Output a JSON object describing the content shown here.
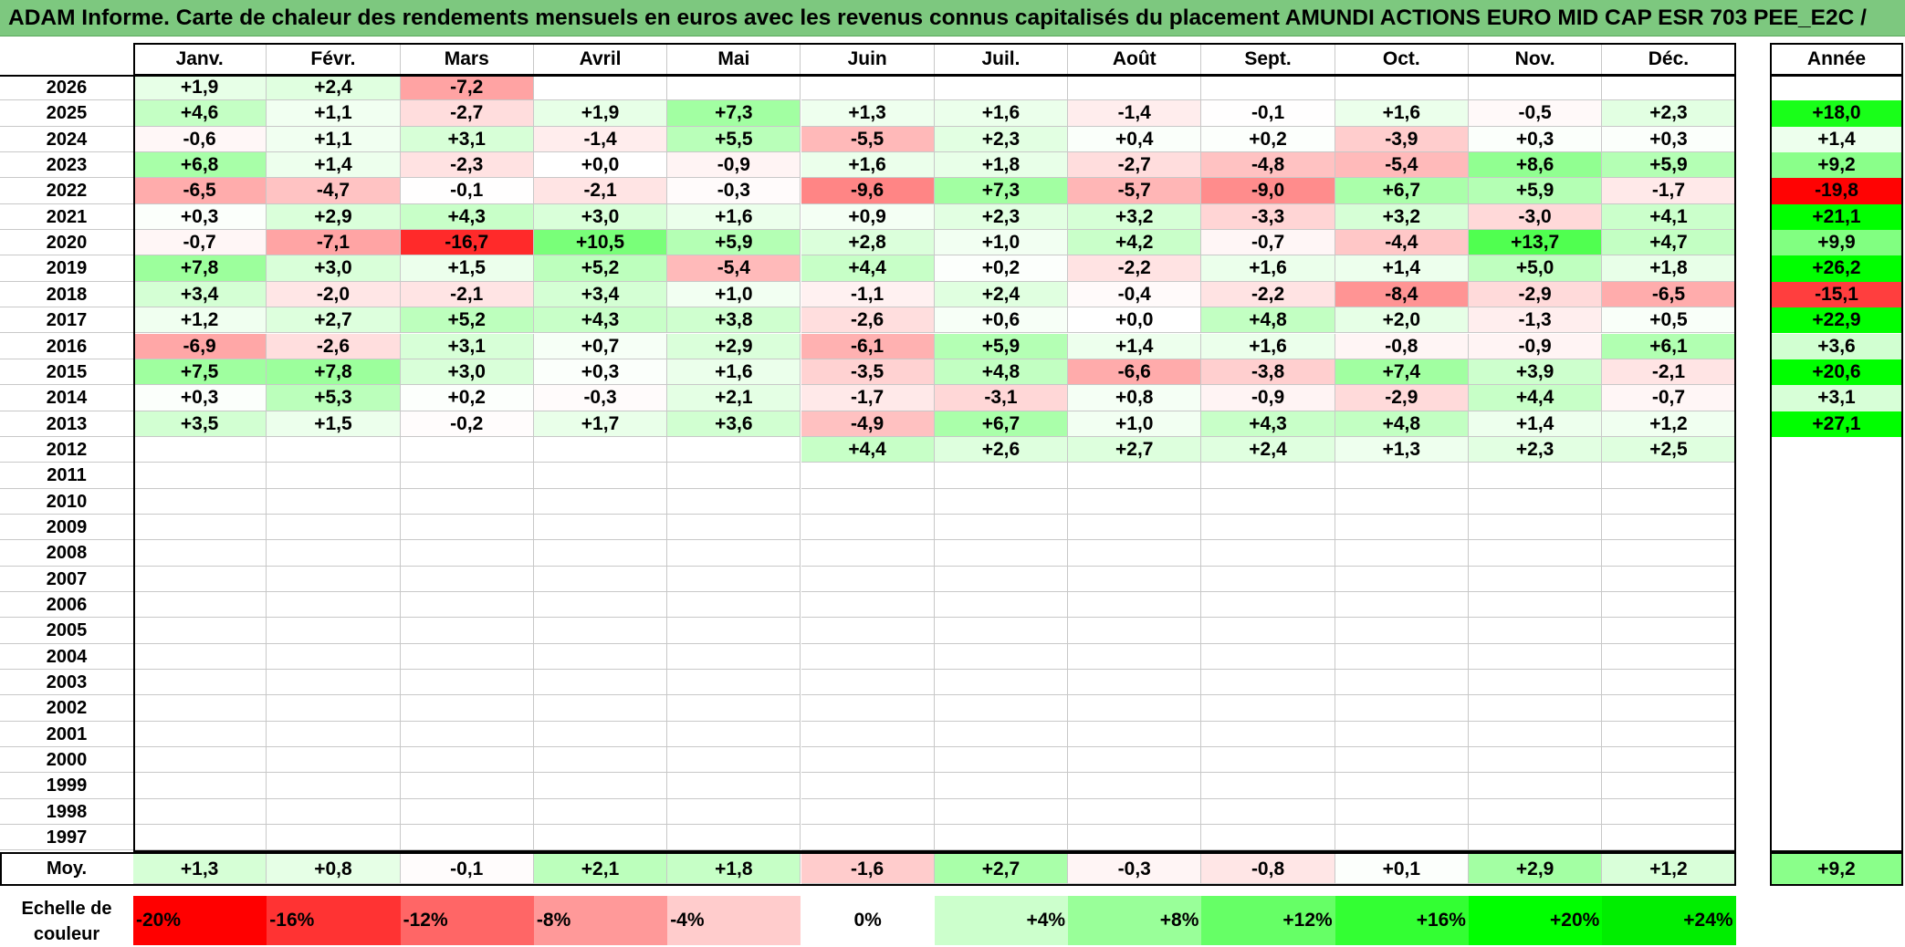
{
  "title": "ADAM Informe. Carte de chaleur des rendements mensuels en euros avec les revenus connus capitalisés du placement AMUNDI ACTIONS EURO MID CAP ESR 703 PEE_E2C /",
  "months": [
    "Janv.",
    "Févr.",
    "Mars",
    "Avril",
    "Mai",
    "Juin",
    "Juil.",
    "Août",
    "Sept.",
    "Oct.",
    "Nov.",
    "Déc."
  ],
  "annual_header": "Année",
  "average_label": "Moy.",
  "scale_label": "Echelle de couleur",
  "chart_data": {
    "type": "heatmap",
    "title": "ADAM Informe. Carte de chaleur des rendements mensuels en euros avec les revenus connus capitalisés du placement AMUNDI ACTIONS EURO MID CAP ESR 703 PEE_E2C /",
    "x_categories": [
      "Janv.",
      "Févr.",
      "Mars",
      "Avril",
      "Mai",
      "Juin",
      "Juil.",
      "Août",
      "Sept.",
      "Oct.",
      "Nov.",
      "Déc."
    ],
    "rows": [
      {
        "year": "2026",
        "values": [
          "+1,9",
          "+2,4",
          "-7,2",
          null,
          null,
          null,
          null,
          null,
          null,
          null,
          null,
          null
        ],
        "annual": null
      },
      {
        "year": "2025",
        "values": [
          "+4,6",
          "+1,1",
          "-2,7",
          "+1,9",
          "+7,3",
          "+1,3",
          "+1,6",
          "-1,4",
          "-0,1",
          "+1,6",
          "-0,5",
          "+2,3"
        ],
        "annual": "+18,0"
      },
      {
        "year": "2024",
        "values": [
          "-0,6",
          "+1,1",
          "+3,1",
          "-1,4",
          "+5,5",
          "-5,5",
          "+2,3",
          "+0,4",
          "+0,2",
          "-3,9",
          "+0,3",
          "+0,3"
        ],
        "annual": "+1,4"
      },
      {
        "year": "2023",
        "values": [
          "+6,8",
          "+1,4",
          "-2,3",
          "+0,0",
          "-0,9",
          "+1,6",
          "+1,8",
          "-2,7",
          "-4,8",
          "-5,4",
          "+8,6",
          "+5,9"
        ],
        "annual": "+9,2"
      },
      {
        "year": "2022",
        "values": [
          "-6,5",
          "-4,7",
          "-0,1",
          "-2,1",
          "-0,3",
          "-9,6",
          "+7,3",
          "-5,7",
          "-9,0",
          "+6,7",
          "+5,9",
          "-1,7"
        ],
        "annual": "-19,8"
      },
      {
        "year": "2021",
        "values": [
          "+0,3",
          "+2,9",
          "+4,3",
          "+3,0",
          "+1,6",
          "+0,9",
          "+2,3",
          "+3,2",
          "-3,3",
          "+3,2",
          "-3,0",
          "+4,1"
        ],
        "annual": "+21,1"
      },
      {
        "year": "2020",
        "values": [
          "-0,7",
          "-7,1",
          "-16,7",
          "+10,5",
          "+5,9",
          "+2,8",
          "+1,0",
          "+4,2",
          "-0,7",
          "-4,4",
          "+13,7",
          "+4,7"
        ],
        "annual": "+9,9"
      },
      {
        "year": "2019",
        "values": [
          "+7,8",
          "+3,0",
          "+1,5",
          "+5,2",
          "-5,4",
          "+4,4",
          "+0,2",
          "-2,2",
          "+1,6",
          "+1,4",
          "+5,0",
          "+1,8"
        ],
        "annual": "+26,2"
      },
      {
        "year": "2018",
        "values": [
          "+3,4",
          "-2,0",
          "-2,1",
          "+3,4",
          "+1,0",
          "-1,1",
          "+2,4",
          "-0,4",
          "-2,2",
          "-8,4",
          "-2,9",
          "-6,5"
        ],
        "annual": "-15,1"
      },
      {
        "year": "2017",
        "values": [
          "+1,2",
          "+2,7",
          "+5,2",
          "+4,3",
          "+3,8",
          "-2,6",
          "+0,6",
          "+0,0",
          "+4,8",
          "+2,0",
          "-1,3",
          "+0,5"
        ],
        "annual": "+22,9"
      },
      {
        "year": "2016",
        "values": [
          "-6,9",
          "-2,6",
          "+3,1",
          "+0,7",
          "+2,9",
          "-6,1",
          "+5,9",
          "+1,4",
          "+1,6",
          "-0,8",
          "-0,9",
          "+6,1"
        ],
        "annual": "+3,6"
      },
      {
        "year": "2015",
        "values": [
          "+7,5",
          "+7,8",
          "+3,0",
          "+0,3",
          "+1,6",
          "-3,5",
          "+4,8",
          "-6,6",
          "-3,8",
          "+7,4",
          "+3,9",
          "-2,1"
        ],
        "annual": "+20,6"
      },
      {
        "year": "2014",
        "values": [
          "+0,3",
          "+5,3",
          "+0,2",
          "-0,3",
          "+2,1",
          "-1,7",
          "-3,1",
          "+0,8",
          "-0,9",
          "-2,9",
          "+4,4",
          "-0,7"
        ],
        "annual": "+3,1"
      },
      {
        "year": "2013",
        "values": [
          "+3,5",
          "+1,5",
          "-0,2",
          "+1,7",
          "+3,6",
          "-4,9",
          "+6,7",
          "+1,0",
          "+4,3",
          "+4,8",
          "+1,4",
          "+1,2"
        ],
        "annual": "+27,1"
      },
      {
        "year": "2012",
        "values": [
          null,
          null,
          null,
          null,
          null,
          "+4,4",
          "+2,6",
          "+2,7",
          "+2,4",
          "+1,3",
          "+2,3",
          "+2,5"
        ],
        "annual": null
      },
      {
        "year": "2011",
        "values": [
          null,
          null,
          null,
          null,
          null,
          null,
          null,
          null,
          null,
          null,
          null,
          null
        ],
        "annual": null
      },
      {
        "year": "2010",
        "values": [
          null,
          null,
          null,
          null,
          null,
          null,
          null,
          null,
          null,
          null,
          null,
          null
        ],
        "annual": null
      },
      {
        "year": "2009",
        "values": [
          null,
          null,
          null,
          null,
          null,
          null,
          null,
          null,
          null,
          null,
          null,
          null
        ],
        "annual": null
      },
      {
        "year": "2008",
        "values": [
          null,
          null,
          null,
          null,
          null,
          null,
          null,
          null,
          null,
          null,
          null,
          null
        ],
        "annual": null
      },
      {
        "year": "2007",
        "values": [
          null,
          null,
          null,
          null,
          null,
          null,
          null,
          null,
          null,
          null,
          null,
          null
        ],
        "annual": null
      },
      {
        "year": "2006",
        "values": [
          null,
          null,
          null,
          null,
          null,
          null,
          null,
          null,
          null,
          null,
          null,
          null
        ],
        "annual": null
      },
      {
        "year": "2005",
        "values": [
          null,
          null,
          null,
          null,
          null,
          null,
          null,
          null,
          null,
          null,
          null,
          null
        ],
        "annual": null
      },
      {
        "year": "2004",
        "values": [
          null,
          null,
          null,
          null,
          null,
          null,
          null,
          null,
          null,
          null,
          null,
          null
        ],
        "annual": null
      },
      {
        "year": "2003",
        "values": [
          null,
          null,
          null,
          null,
          null,
          null,
          null,
          null,
          null,
          null,
          null,
          null
        ],
        "annual": null
      },
      {
        "year": "2002",
        "values": [
          null,
          null,
          null,
          null,
          null,
          null,
          null,
          null,
          null,
          null,
          null,
          null
        ],
        "annual": null
      },
      {
        "year": "2001",
        "values": [
          null,
          null,
          null,
          null,
          null,
          null,
          null,
          null,
          null,
          null,
          null,
          null
        ],
        "annual": null
      },
      {
        "year": "2000",
        "values": [
          null,
          null,
          null,
          null,
          null,
          null,
          null,
          null,
          null,
          null,
          null,
          null
        ],
        "annual": null
      },
      {
        "year": "1999",
        "values": [
          null,
          null,
          null,
          null,
          null,
          null,
          null,
          null,
          null,
          null,
          null,
          null
        ],
        "annual": null
      },
      {
        "year": "1998",
        "values": [
          null,
          null,
          null,
          null,
          null,
          null,
          null,
          null,
          null,
          null,
          null,
          null
        ],
        "annual": null
      },
      {
        "year": "1997",
        "values": [
          null,
          null,
          null,
          null,
          null,
          null,
          null,
          null,
          null,
          null,
          null,
          null
        ],
        "annual": null
      }
    ],
    "average": {
      "values": [
        "+1,3",
        "+0,8",
        "-0,1",
        "+2,1",
        "+1,8",
        "-1,6",
        "+2,7",
        "-0,3",
        "-0,8",
        "+0,1",
        "+2,9",
        "+1,2"
      ],
      "annual": "+9,2"
    },
    "color_scale": [
      {
        "label": "-20%",
        "color": "#ff0000"
      },
      {
        "label": "-16%",
        "color": "#ff3333"
      },
      {
        "label": "-12%",
        "color": "#ff6666"
      },
      {
        "label": "-8%",
        "color": "#ff9999"
      },
      {
        "label": "-4%",
        "color": "#ffcccc"
      },
      {
        "label": "0%",
        "color": "#ffffff"
      },
      {
        "label": "+4%",
        "color": "#ccffcc"
      },
      {
        "label": "+8%",
        "color": "#99ff99"
      },
      {
        "label": "+12%",
        "color": "#66ff66"
      },
      {
        "label": "+16%",
        "color": "#33ff33"
      },
      {
        "label": "+20%",
        "color": "#00ff00"
      },
      {
        "label": "+24%",
        "color": "#00ee00"
      }
    ]
  }
}
